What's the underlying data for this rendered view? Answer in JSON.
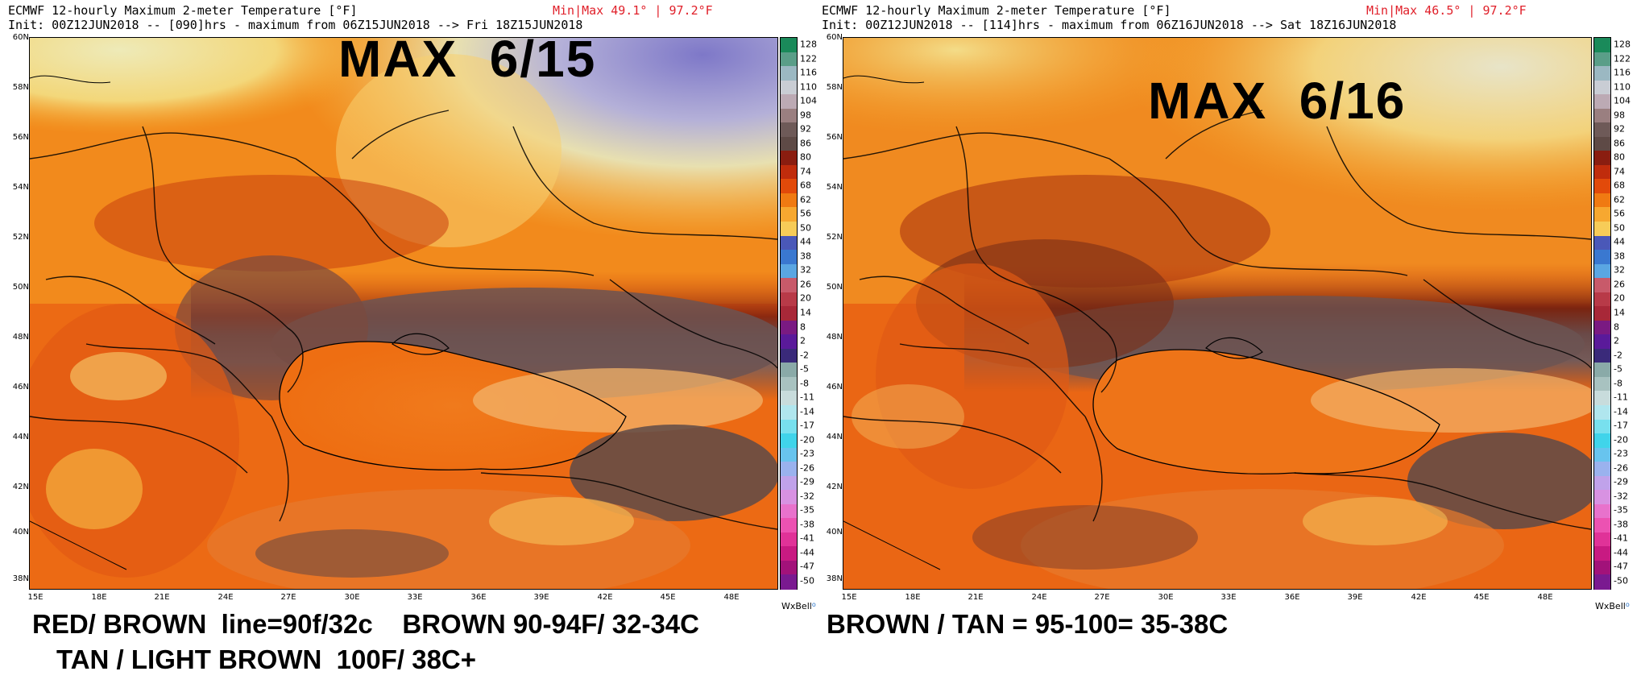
{
  "panels": [
    {
      "id": "left",
      "header1": "ECMWF 12-hourly Maximum 2-meter Temperature [°F]",
      "header2": "Init: 00Z12JUN2018 -- [090]hrs - maximum from 06Z15JUN2018 --> Fri 18Z15JUN2018",
      "minmax": "Min|Max 49.1° | 97.2°F",
      "big_label": "MAX  6/15",
      "watermark": "WxBell"
    },
    {
      "id": "right",
      "header1": "ECMWF 12-hourly Maximum 2-meter Temperature [°F]",
      "header2": "Init: 00Z12JUN2018 -- [114]hrs - maximum from 06Z16JUN2018 --> Sat 18Z16JUN2018",
      "minmax": "Min|Max 46.5° | 97.2°F",
      "big_label": "MAX  6/16",
      "watermark": "WxBell"
    }
  ],
  "lat_labels": [
    "60N",
    "58N",
    "56N",
    "54N",
    "52N",
    "50N",
    "48N",
    "46N",
    "44N",
    "42N",
    "40N",
    "38N"
  ],
  "lon_labels": [
    "15E",
    "18E",
    "21E",
    "24E",
    "27E",
    "30E",
    "33E",
    "36E",
    "39E",
    "42E",
    "45E",
    "48E"
  ],
  "colorbar": {
    "ticks": [
      "128",
      "122",
      "116",
      "110",
      "104",
      "98",
      "92",
      "86",
      "80",
      "74",
      "68",
      "62",
      "56",
      "50",
      "44",
      "38",
      "32",
      "26",
      "20",
      "14",
      "8",
      "2",
      "-2",
      "-5",
      "-8",
      "-11",
      "-14",
      "-17",
      "-20",
      "-23",
      "-26",
      "-29",
      "-32",
      "-35",
      "-38",
      "-41",
      "-44",
      "-47",
      "-50"
    ],
    "colors": [
      "#1a8a5a",
      "#5a9e88",
      "#9bb8c2",
      "#c9cdd4",
      "#bcaab4",
      "#9a7f80",
      "#6e5a58",
      "#5e4a46",
      "#8a1d10",
      "#c02c0c",
      "#e24a0a",
      "#f07a12",
      "#f7a830",
      "#f7cc58",
      "#4a58b8",
      "#3a78d0",
      "#5aa6e2",
      "#c85a6a",
      "#b83a48",
      "#a82838",
      "#7a1a82",
      "#5a1a9a",
      "#3a2a7a",
      "#8aaaa8",
      "#a8c2c0",
      "#c8dcdc",
      "#b0e6ee",
      "#78e0ee",
      "#40d4ea",
      "#68c4ee",
      "#9ab2ee",
      "#c0a2ea",
      "#d892e2",
      "#e872cc",
      "#ec52b2",
      "#e03298",
      "#c81a82",
      "#a2127a",
      "#7a1a90"
    ]
  },
  "notes": [
    "RED/ BROWN  line=90f/32c    BROWN 90-94F/ 32-34C",
    "BROWN / TAN = 95-100= 35-38C",
    "TAN / LIGHT BROWN  100F/ 38C+"
  ]
}
